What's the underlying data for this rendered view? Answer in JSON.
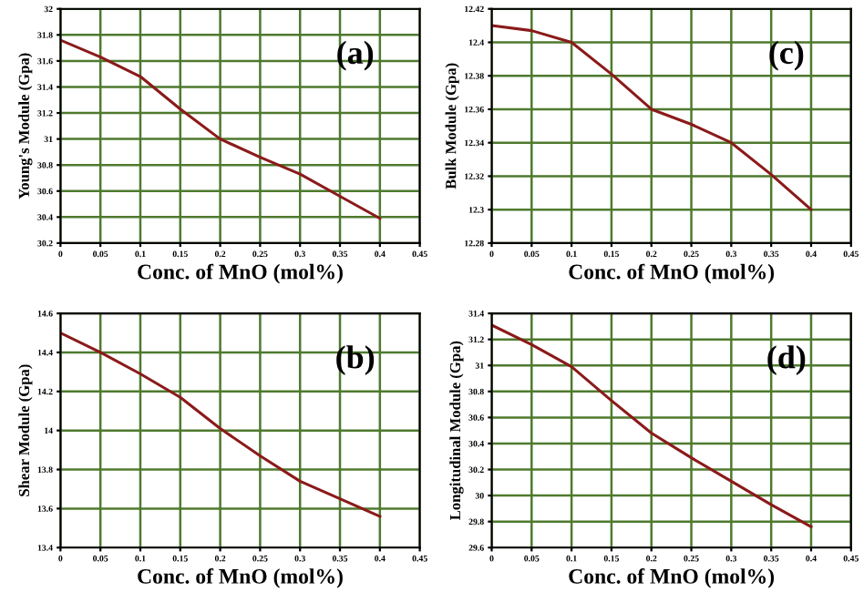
{
  "chart_data": [
    {
      "type": "line",
      "xlabel": "Conc. of MnO (mol%)",
      "ylabel": "Young's Module (Gpa)",
      "annotations": [
        "(a)"
      ],
      "x": [
        0,
        0.05,
        0.1,
        0.15,
        0.2,
        0.25,
        0.3,
        0.35,
        0.4
      ],
      "series": [
        {
          "color": "#8b1a1a",
          "values": [
            31.76,
            31.63,
            31.48,
            31.23,
            31.0,
            30.86,
            30.73,
            30.56,
            30.39
          ]
        }
      ],
      "xlim": [
        0,
        0.45
      ],
      "xticks": [
        0,
        0.05,
        0.1,
        0.15,
        0.2,
        0.25,
        0.3,
        0.35,
        0.4,
        0.45
      ],
      "ylim": [
        30.2,
        32
      ],
      "yticks": [
        30.2,
        30.4,
        30.6,
        30.8,
        31,
        31.2,
        31.4,
        31.6,
        31.8,
        32
      ],
      "grid": true,
      "line_style": "solid"
    },
    {
      "type": "line",
      "xlabel": "Conc. of MnO (mol%)",
      "ylabel": "Bulk Module (Gpa)",
      "annotations": [
        "(c)"
      ],
      "x": [
        0,
        0.05,
        0.1,
        0.15,
        0.2,
        0.25,
        0.3,
        0.35,
        0.4
      ],
      "series": [
        {
          "color": "#8b1a1a",
          "values": [
            12.41,
            12.407,
            12.4,
            12.381,
            12.36,
            12.351,
            12.34,
            12.321,
            12.3
          ]
        }
      ],
      "xlim": [
        0,
        0.45
      ],
      "xticks": [
        0,
        0.05,
        0.1,
        0.15,
        0.2,
        0.25,
        0.3,
        0.35,
        0.4,
        0.45
      ],
      "ylim": [
        12.28,
        12.42
      ],
      "yticks": [
        12.28,
        12.3,
        12.32,
        12.34,
        12.36,
        12.38,
        12.4,
        12.42
      ],
      "grid": true,
      "line_style": "solid"
    },
    {
      "type": "line",
      "xlabel": "Conc. of MnO (mol%)",
      "ylabel": "Shear Module (Gpa)",
      "annotations": [
        "(b)"
      ],
      "x": [
        0,
        0.05,
        0.1,
        0.15,
        0.2,
        0.25,
        0.3,
        0.35,
        0.4
      ],
      "series": [
        {
          "color": "#8b1a1a",
          "values": [
            14.5,
            14.4,
            14.29,
            14.17,
            14.01,
            13.87,
            13.74,
            13.65,
            13.56
          ]
        }
      ],
      "xlim": [
        0,
        0.45
      ],
      "xticks": [
        0,
        0.05,
        0.1,
        0.15,
        0.2,
        0.25,
        0.3,
        0.35,
        0.4,
        0.45
      ],
      "ylim": [
        13.4,
        14.6
      ],
      "yticks": [
        13.4,
        13.6,
        13.8,
        14,
        14.2,
        14.4,
        14.6
      ],
      "grid": true,
      "line_style": "solid"
    },
    {
      "type": "line",
      "xlabel": "Conc. of MnO (mol%)",
      "ylabel": "Longitudinal Module (Gpa)",
      "annotations": [
        "(d)"
      ],
      "x": [
        0,
        0.05,
        0.1,
        0.15,
        0.2,
        0.25,
        0.3,
        0.35,
        0.4
      ],
      "series": [
        {
          "color": "#8b1a1a",
          "values": [
            31.31,
            31.16,
            30.99,
            30.73,
            30.48,
            30.29,
            30.11,
            29.93,
            29.76
          ]
        }
      ],
      "xlim": [
        0,
        0.45
      ],
      "xticks": [
        0,
        0.05,
        0.1,
        0.15,
        0.2,
        0.25,
        0.3,
        0.35,
        0.4,
        0.45
      ],
      "ylim": [
        29.6,
        31.4
      ],
      "yticks": [
        29.6,
        29.8,
        30,
        30.2,
        30.4,
        30.6,
        30.8,
        31,
        31.2,
        31.4
      ],
      "grid": true,
      "line_style": "solid"
    }
  ]
}
